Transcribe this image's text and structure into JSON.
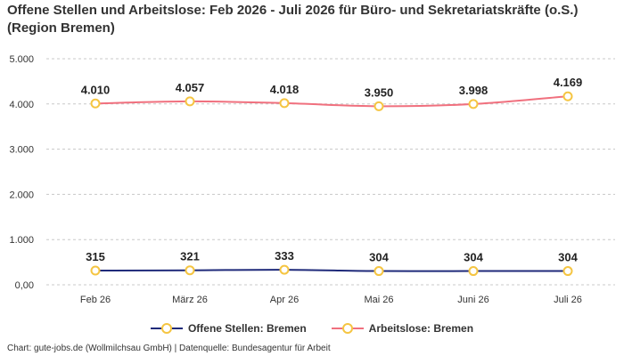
{
  "title": "Offene Stellen und Arbeitslose: Feb 2026 - Juli 2026 für Büro- und Sekretariatskräfte (o.S.) (Region Bremen)",
  "footer": "Chart: gute-jobs.de (Wollmilchsau GmbH) | Datenquelle: Bundesagentur für Arbeit",
  "chart_data": {
    "type": "line",
    "title": "Offene Stellen und Arbeitslose: Feb 2026 - Juli 2026 für Büro- und Sekretariatskräfte (o.S.) (Region Bremen)",
    "categories": [
      "Feb 26",
      "März 26",
      "Apr 26",
      "Mai 26",
      "Juni 26",
      "Juli 26"
    ],
    "ylim": [
      0,
      5000
    ],
    "yticks": [
      0,
      1000,
      2000,
      3000,
      4000,
      5000
    ],
    "ytick_labels": [
      "0,00",
      "1.000",
      "2.000",
      "3.000",
      "4.000",
      "5.000"
    ],
    "grid": true,
    "legend_position": "bottom",
    "series": [
      {
        "name": "Offene Stellen: Bremen",
        "values": [
          315,
          321,
          333,
          304,
          304,
          304
        ],
        "labels": [
          "315",
          "321",
          "333",
          "304",
          "304",
          "304"
        ],
        "color": "#1f2a7a",
        "marker_color": "#f5c542"
      },
      {
        "name": "Arbeitslose: Bremen",
        "values": [
          4010,
          4057,
          4018,
          3950,
          3998,
          4169
        ],
        "labels": [
          "4.010",
          "4.057",
          "4.018",
          "3.950",
          "3.998",
          "4.169"
        ],
        "color": "#f0707e",
        "marker_color": "#f5c542"
      }
    ]
  }
}
